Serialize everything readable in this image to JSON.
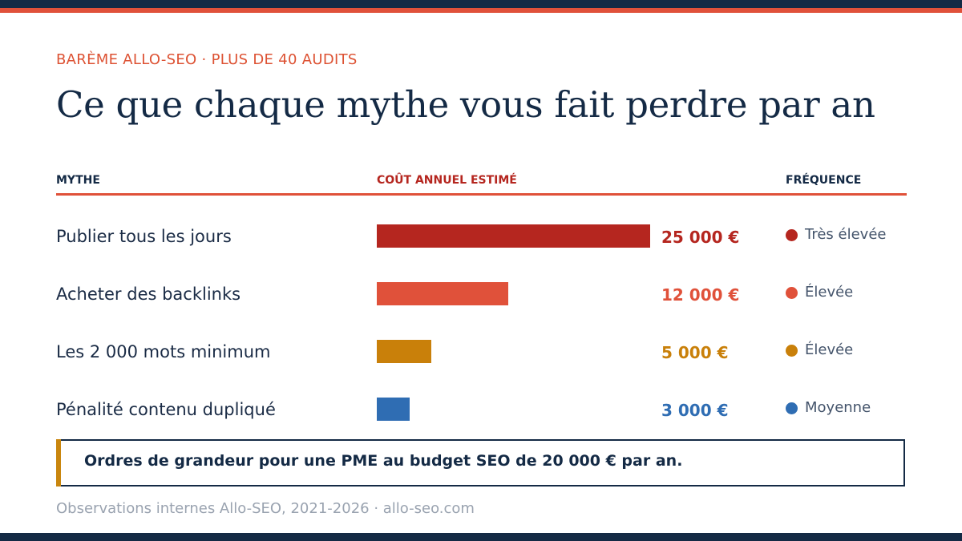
{
  "header": {
    "eyebrow": "BARÈME ALLO-SEO · PLUS DE 40 AUDITS",
    "title": "Ce que chaque mythe vous fait perdre par an"
  },
  "columns": {
    "myth": "MYTHE",
    "cost": "COÛT ANNUEL ESTIMÉ",
    "frequency": "FRÉQUENCE"
  },
  "chart_data": {
    "type": "bar",
    "orientation": "horizontal",
    "categories": [
      "Publier tous les jours",
      "Acheter des backlinks",
      "Les 2 000 mots minimum",
      "Pénalité contenu dupliqué"
    ],
    "values": [
      25000,
      12000,
      5000,
      3000
    ],
    "value_labels": [
      "25 000 €",
      "12 000 €",
      "5 000 €",
      "3 000 €"
    ],
    "colors": [
      "#b5261f",
      "#e0513a",
      "#c9800a",
      "#2f6db3"
    ],
    "frequency": [
      "Très élevée",
      "Élevée",
      "Élevée",
      "Moyenne"
    ],
    "xlim": [
      0,
      25000
    ],
    "grid": false,
    "legend": "none"
  },
  "note": "Ordres de grandeur pour une PME au budget SEO de 20 000 € par an.",
  "footer": "Observations internes Allo-SEO, 2021-2026 · allo-seo.com",
  "colors": {
    "navy": "#142a45",
    "accent": "#e0513a",
    "note_accent": "#c9860e"
  }
}
